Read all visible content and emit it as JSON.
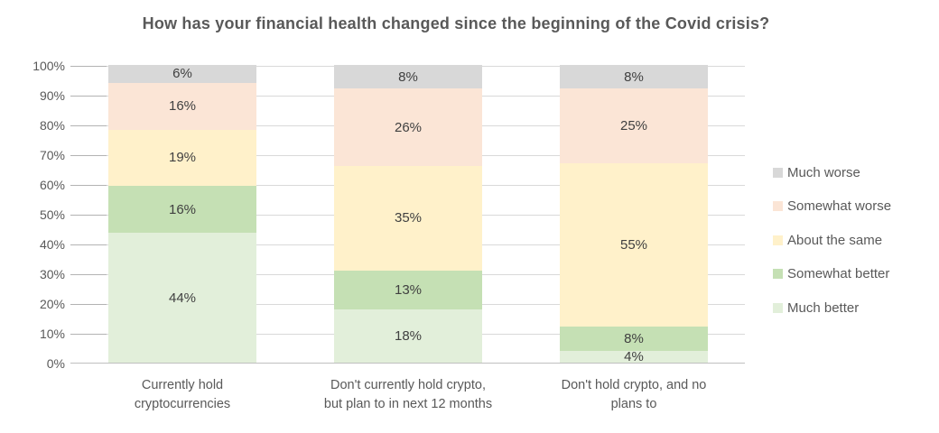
{
  "title": "How has your financial health changed since the beginning of the Covid crisis?",
  "colors": {
    "title_text": "#595959",
    "axis_text": "#595959",
    "value_text": "#404040",
    "gridline": "#d9d9d9",
    "tick_mark": "#b3b3b3",
    "axis_line": "#bfbfbf",
    "background": "#ffffff"
  },
  "chart_data": {
    "type": "bar",
    "variant": "stacked-100-percent-column",
    "title": "How has your financial health changed since the beginning of the Covid crisis?",
    "categories": [
      "Currently hold\ncryptocurrencies",
      "Don't currently hold crypto,\nbut plan to in next 12 months",
      "Don't hold crypto, and no\nplans to"
    ],
    "series": [
      {
        "name": "Much better",
        "color": "#e2efda",
        "values": [
          44,
          18,
          4
        ]
      },
      {
        "name": "Somewhat better",
        "color": "#c5e0b4",
        "values": [
          16,
          13,
          8
        ]
      },
      {
        "name": "About the same",
        "color": "#fff1ca",
        "values": [
          19,
          35,
          55
        ]
      },
      {
        "name": "Somewhat worse",
        "color": "#fbe5d6",
        "values": [
          16,
          26,
          25
        ]
      },
      {
        "name": "Much worse",
        "color": "#d8d8d8",
        "values": [
          6,
          8,
          8
        ]
      }
    ],
    "stack_order": "bottom-to-top",
    "value_suffix": "%",
    "xlabel": "",
    "ylabel": "",
    "y_axis": {
      "min": 0,
      "max": 100,
      "tick_step": 10,
      "ticks": [
        "0%",
        "10%",
        "20%",
        "30%",
        "40%",
        "50%",
        "60%",
        "70%",
        "80%",
        "90%",
        "100%"
      ],
      "gridlines": true
    },
    "legend": {
      "position": "right",
      "order_top_to_bottom": [
        "Much worse",
        "Somewhat worse",
        "About the same",
        "Somewhat better",
        "Much better"
      ]
    }
  }
}
